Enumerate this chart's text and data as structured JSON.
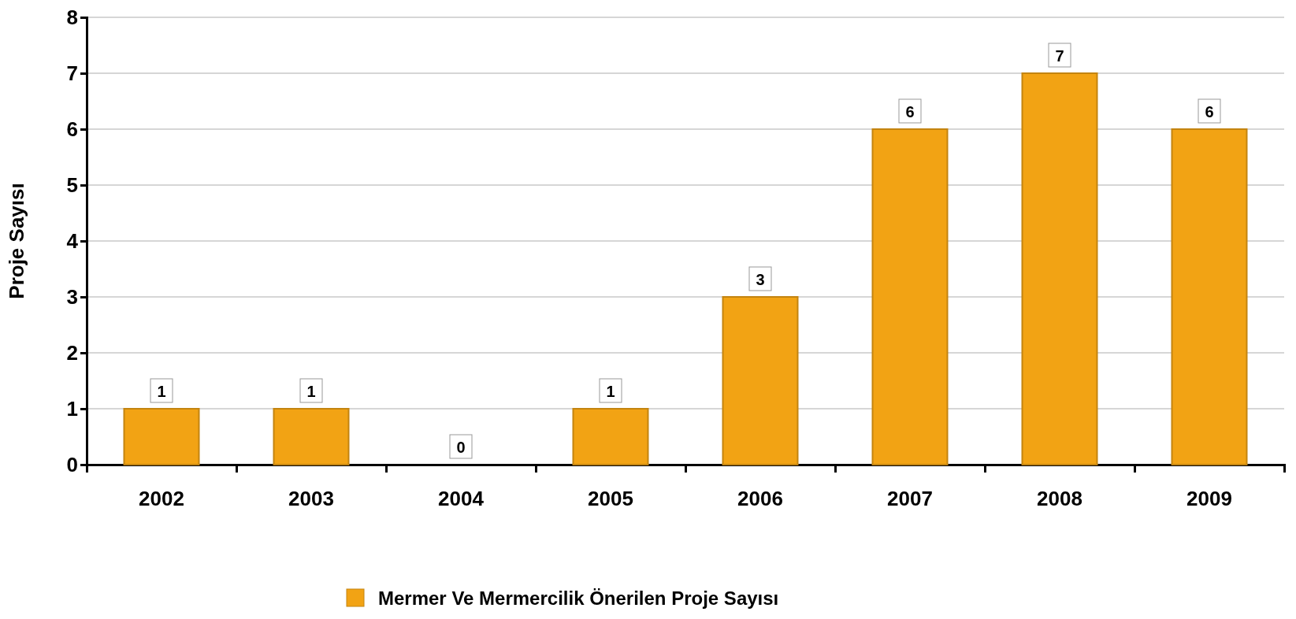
{
  "chart_data": {
    "type": "bar",
    "ylabel": "Proje Sayısı",
    "categories": [
      "2002",
      "2003",
      "2004",
      "2005",
      "2006",
      "2007",
      "2008",
      "2009"
    ],
    "series": [
      {
        "name": "Mermer Ve Mermercilik Önerilen Proje Sayısı",
        "color": "#f2a314",
        "values": [
          1,
          1,
          0,
          1,
          3,
          6,
          7,
          6
        ]
      }
    ],
    "ylim": [
      0,
      8
    ],
    "yticks": [
      0,
      1,
      2,
      3,
      4,
      5,
      6,
      7,
      8
    ],
    "grid": "y",
    "legend": "bottom",
    "data_labels": true
  }
}
